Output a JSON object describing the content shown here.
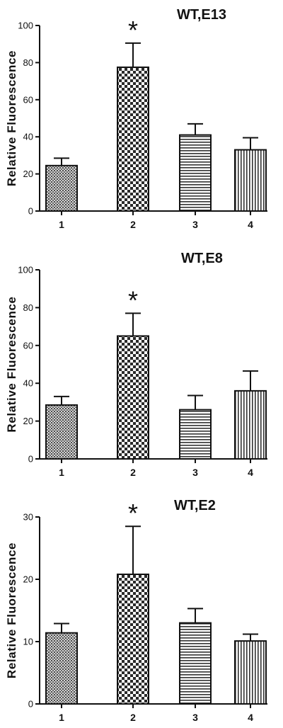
{
  "chart_data": [
    {
      "type": "bar",
      "title": "WT,E13",
      "xlabel": "",
      "ylabel": "Relative  Fluorescence",
      "categories": [
        "1",
        "2",
        "3",
        "4"
      ],
      "values": [
        24.5,
        77.5,
        41,
        33
      ],
      "errors": [
        4,
        13,
        6,
        6.5
      ],
      "significance": [
        "",
        "*",
        "",
        ""
      ],
      "ylim": [
        0,
        100
      ],
      "yticks": [
        0,
        20,
        40,
        60,
        80,
        100
      ],
      "yticklabels": [
        "0",
        "20",
        "40",
        "60",
        "80",
        "100"
      ],
      "grid": false,
      "bar_patterns": [
        "fine-dots",
        "checker",
        "horizontal-lines",
        "vertical-lines"
      ]
    },
    {
      "type": "bar",
      "title": "WT,E8",
      "xlabel": "",
      "ylabel": "Relative  Fluorescence",
      "categories": [
        "1",
        "2",
        "3",
        "4"
      ],
      "values": [
        28.5,
        65,
        26,
        36
      ],
      "errors": [
        4.5,
        12,
        7.5,
        10.5
      ],
      "significance": [
        "",
        "*",
        "",
        ""
      ],
      "ylim": [
        0,
        100
      ],
      "yticks": [
        0,
        20,
        40,
        60,
        80,
        100
      ],
      "yticklabels": [
        "0",
        "20",
        "40",
        "60",
        "80",
        "100"
      ],
      "grid": false,
      "bar_patterns": [
        "fine-dots",
        "checker",
        "horizontal-lines",
        "vertical-lines"
      ]
    },
    {
      "type": "bar",
      "title": "WT,E2",
      "xlabel": "",
      "ylabel": "Relative  Fluorescence",
      "categories": [
        "1",
        "2",
        "3",
        "4"
      ],
      "values": [
        11.4,
        20.8,
        13,
        10.1
      ],
      "errors": [
        1.5,
        7.7,
        2.3,
        1.1
      ],
      "significance": [
        "",
        "*",
        "",
        ""
      ],
      "ylim": [
        0,
        30
      ],
      "yticks": [
        0,
        10,
        20,
        30
      ],
      "yticklabels": [
        "0",
        "10",
        "20",
        "30"
      ],
      "grid": false,
      "bar_patterns": [
        "fine-dots",
        "checker",
        "horizontal-lines",
        "vertical-lines"
      ]
    }
  ]
}
